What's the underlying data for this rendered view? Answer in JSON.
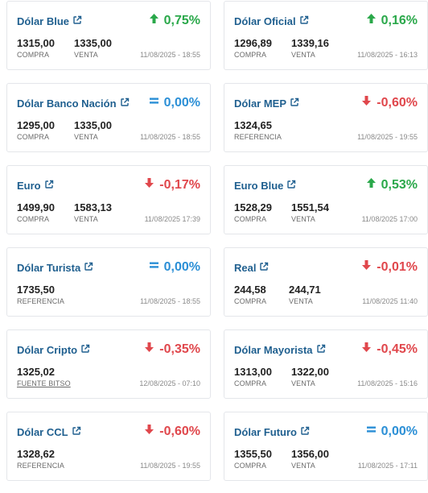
{
  "colors": {
    "up": "#2aa84a",
    "down": "#e0474c",
    "flat": "#2b8fd6",
    "title": "#1f5f8f"
  },
  "cards": [
    {
      "title": "Dólar Blue",
      "change": "0,75%",
      "direction": "up",
      "values": [
        {
          "num": "1315,00",
          "label": "COMPRA"
        },
        {
          "num": "1335,00",
          "label": "VENTA"
        }
      ],
      "date": "11/08/2025 - 18:55"
    },
    {
      "title": "Dólar Oficial",
      "change": "0,16%",
      "direction": "up",
      "values": [
        {
          "num": "1296,89",
          "label": "COMPRA"
        },
        {
          "num": "1339,16",
          "label": "VENTA"
        }
      ],
      "date": "11/08/2025 - 16:13"
    },
    {
      "title": "Dólar Banco Nación",
      "change": "0,00%",
      "direction": "flat",
      "values": [
        {
          "num": "1295,00",
          "label": "COMPRA"
        },
        {
          "num": "1335,00",
          "label": "VENTA"
        }
      ],
      "date": "11/08/2025 - 18:55"
    },
    {
      "title": "Dólar MEP",
      "change": "-0,60%",
      "direction": "down",
      "values": [
        {
          "num": "1324,65",
          "label": "REFERENCIA"
        }
      ],
      "date": "11/08/2025 - 19:55"
    },
    {
      "title": "Euro",
      "change": "-0,17%",
      "direction": "down",
      "values": [
        {
          "num": "1499,90",
          "label": "COMPRA"
        },
        {
          "num": "1583,13",
          "label": "VENTA"
        }
      ],
      "date": "11/08/2025 17:39"
    },
    {
      "title": "Euro Blue",
      "change": "0,53%",
      "direction": "up",
      "values": [
        {
          "num": "1528,29",
          "label": "COMPRA"
        },
        {
          "num": "1551,54",
          "label": "VENTA"
        }
      ],
      "date": "11/08/2025 17:00"
    },
    {
      "title": "Dólar Turista",
      "change": "0,00%",
      "direction": "flat",
      "values": [
        {
          "num": "1735,50",
          "label": "REFERENCIA"
        }
      ],
      "date": "11/08/2025 - 18:55"
    },
    {
      "title": "Real",
      "change": "-0,01%",
      "direction": "down",
      "values": [
        {
          "num": "244,58",
          "label": "COMPRA"
        },
        {
          "num": "244,71",
          "label": "VENTA"
        }
      ],
      "date": "11/08/2025 11:40"
    },
    {
      "title": "Dólar Cripto",
      "change": "-0,35%",
      "direction": "down",
      "values": [
        {
          "num": "1325,02",
          "label": "FUENTE BITSO",
          "link": true
        }
      ],
      "date": "12/08/2025 - 07:10"
    },
    {
      "title": "Dólar Mayorista",
      "change": "-0,45%",
      "direction": "down",
      "values": [
        {
          "num": "1313,00",
          "label": "COMPRA"
        },
        {
          "num": "1322,00",
          "label": "VENTA"
        }
      ],
      "date": "11/08/2025 - 15:16"
    },
    {
      "title": "Dólar CCL",
      "change": "-0,60%",
      "direction": "down",
      "values": [
        {
          "num": "1328,62",
          "label": "REFERENCIA"
        }
      ],
      "date": "11/08/2025 - 19:55"
    },
    {
      "title": "Dólar Futuro",
      "change": "0,00%",
      "direction": "flat",
      "values": [
        {
          "num": "1355,50",
          "label": "COMPRA"
        },
        {
          "num": "1356,00",
          "label": "VENTA"
        }
      ],
      "date": "11/08/2025 - 17:11"
    }
  ]
}
